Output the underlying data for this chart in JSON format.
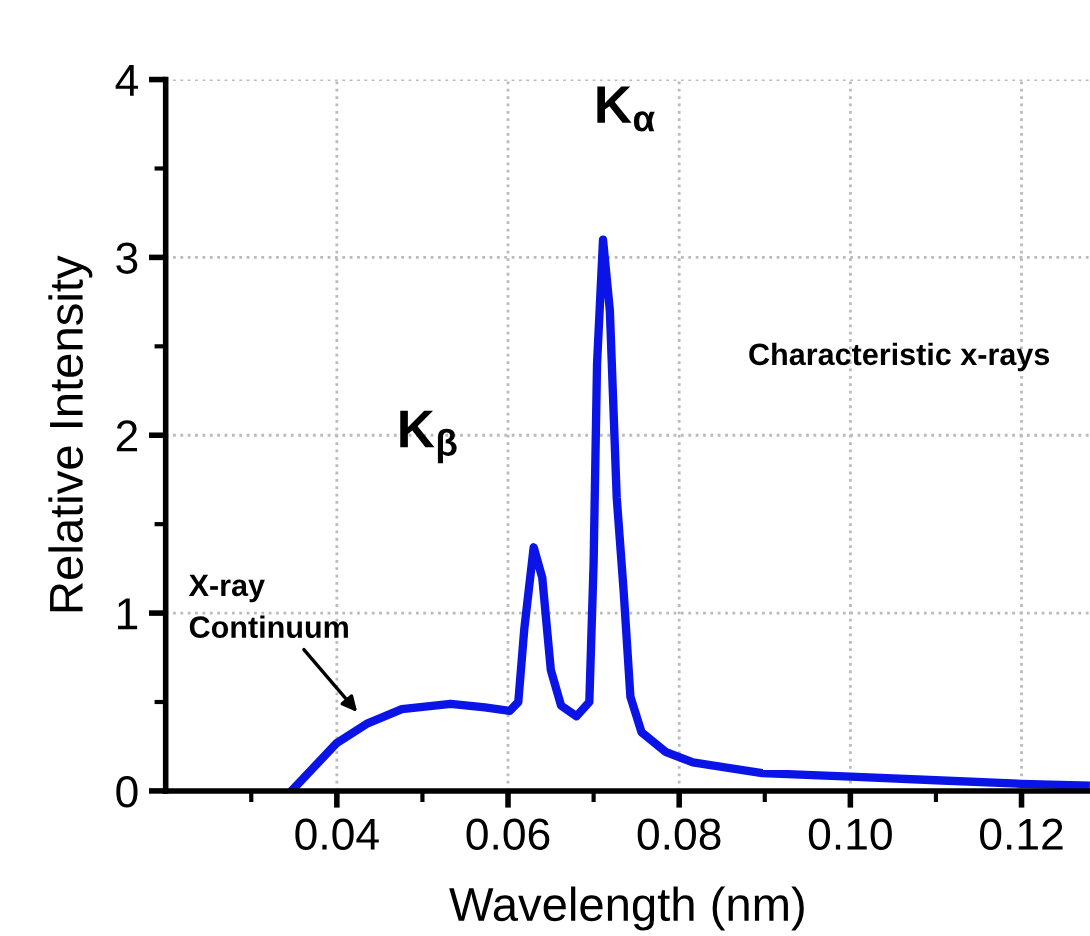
{
  "chart_data": {
    "type": "line",
    "xlabel": "Wavelength (nm)",
    "ylabel": "Relative Intensity",
    "x": [
      0.0347,
      0.04,
      0.0436,
      0.0476,
      0.0533,
      0.0573,
      0.0602,
      0.0612,
      0.0619,
      0.063,
      0.064,
      0.065,
      0.0662,
      0.068,
      0.0695,
      0.07,
      0.0704,
      0.0711,
      0.0719,
      0.0727,
      0.0735,
      0.0743,
      0.0756,
      0.0784,
      0.0816,
      0.0897,
      0.1,
      0.11,
      0.12,
      0.1275
    ],
    "series": [
      {
        "color": "#0a14e6",
        "values": [
          0,
          0.27,
          0.38,
          0.46,
          0.49,
          0.47,
          0.45,
          0.5,
          0.91,
          1.37,
          1.2,
          0.68,
          0.48,
          0.42,
          0.5,
          1.28,
          2.4,
          3.1,
          2.7,
          1.65,
          1.13,
          0.53,
          0.33,
          0.22,
          0.16,
          0.1,
          0.08,
          0.06,
          0.04,
          0.03
        ]
      }
    ],
    "xlim": [
      0.02,
      0.128
    ],
    "ylim": [
      0,
      4
    ],
    "xticks": [
      {
        "value": 0.03,
        "label": null
      },
      0.04,
      {
        "value": 0.05,
        "label": null
      },
      0.06,
      {
        "value": 0.07,
        "label": null
      },
      0.08,
      {
        "value": 0.09,
        "label": null
      },
      {
        "value": 0.1,
        "label": "0.10"
      },
      {
        "value": 0.11,
        "label": null
      },
      0.12
    ],
    "yticks": [
      0,
      {
        "value": 0.5,
        "label": null
      },
      1,
      {
        "value": 1.5,
        "label": null
      },
      2,
      {
        "value": 2.5,
        "label": null
      },
      3,
      {
        "value": 3.5,
        "label": null
      },
      4
    ],
    "grid": true,
    "marker": "none",
    "line_style": "solid",
    "legend": false,
    "annotations": [
      {
        "text": "K$_{α}$",
        "x": 0.0711,
        "y": 3.1
      },
      {
        "text": "K$_{β}$",
        "x": 0.063,
        "y": 1.37
      },
      "Characteristic x-rays",
      {
        "text": "X-ray\nContinuum",
        "x": 0.0428,
        "y": 0.42
      }
    ]
  }
}
